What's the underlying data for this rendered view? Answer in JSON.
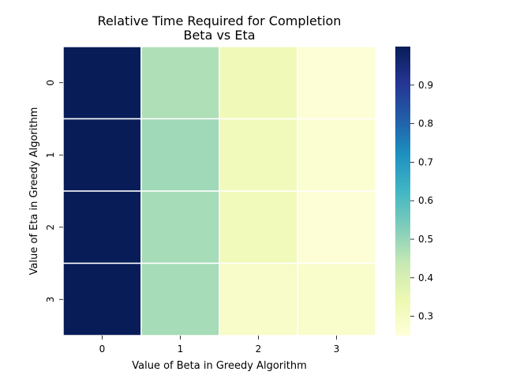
{
  "chart_data": {
    "type": "heatmap",
    "title_line1": "Relative Time Required for Completion",
    "title_line2": "Beta vs Eta",
    "xlabel": "Value of Beta in Greedy Algorithm",
    "ylabel": "Value of Eta in Greedy Algorithm",
    "x_categories": [
      "0",
      "1",
      "2",
      "3"
    ],
    "y_categories": [
      "0",
      "1",
      "2",
      "3"
    ],
    "values": [
      [
        1.0,
        0.47,
        0.33,
        0.26
      ],
      [
        1.0,
        0.49,
        0.32,
        0.27
      ],
      [
        1.0,
        0.48,
        0.32,
        0.26
      ],
      [
        1.0,
        0.48,
        0.29,
        0.28
      ]
    ],
    "colormap": "YlGnBu",
    "vmin": 0.25,
    "vmax": 1.0,
    "colorbar_ticks": [
      "0.3",
      "0.4",
      "0.5",
      "0.6",
      "0.7",
      "0.8",
      "0.9"
    ],
    "cell_border_color": "#ffffff"
  }
}
